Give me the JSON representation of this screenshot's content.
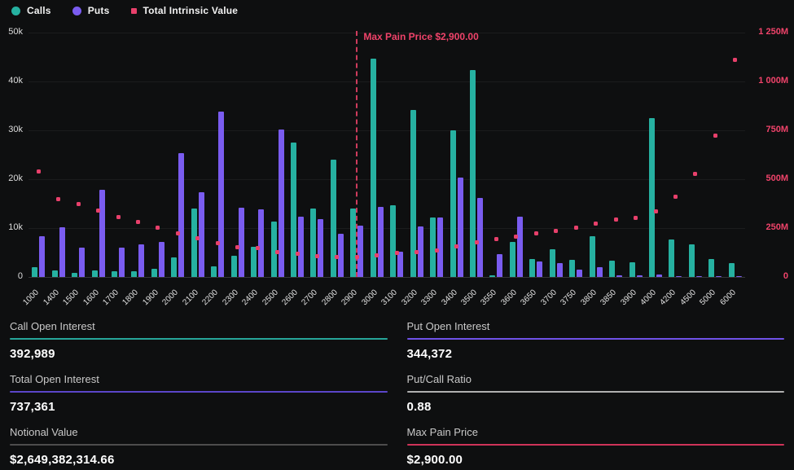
{
  "legend": [
    {
      "label": "Calls",
      "marker": "circle",
      "color": "#26b1a1"
    },
    {
      "label": "Puts",
      "marker": "circle",
      "color": "#7a5cf0"
    },
    {
      "label": "Total Intrinsic Value",
      "marker": "square",
      "color": "#e8406b"
    }
  ],
  "chart_data": {
    "type": "bar",
    "title": "",
    "categories": [
      "1000",
      "1400",
      "1500",
      "1600",
      "1700",
      "1800",
      "1900",
      "2000",
      "2100",
      "2200",
      "2300",
      "2400",
      "2500",
      "2600",
      "2700",
      "2800",
      "2900",
      "3000",
      "3100",
      "3200",
      "3300",
      "3400",
      "3500",
      "3550",
      "3600",
      "3650",
      "3700",
      "3750",
      "3800",
      "3850",
      "3900",
      "4000",
      "4200",
      "4500",
      "5000",
      "6000"
    ],
    "series": [
      {
        "name": "Calls",
        "type": "bar",
        "axis": "left",
        "color": "#26b1a1",
        "values": [
          2000,
          1300,
          800,
          1300,
          1200,
          1200,
          1700,
          4000,
          14000,
          2200,
          4300,
          6200,
          11300,
          27500,
          14000,
          24000,
          14000,
          44600,
          14700,
          34200,
          12100,
          30000,
          42300,
          300,
          7200,
          3600,
          5600,
          3500,
          8300,
          3300,
          3000,
          32500,
          7700,
          6700,
          3600,
          2800
        ]
      },
      {
        "name": "Puts",
        "type": "bar",
        "axis": "left",
        "color": "#7a5cf0",
        "values": [
          8400,
          10200,
          6000,
          17800,
          6000,
          6700,
          7200,
          25300,
          17300,
          33800,
          14200,
          13800,
          30200,
          12300,
          11800,
          8900,
          10500,
          14300,
          5100,
          10400,
          12100,
          20400,
          16200,
          4700,
          12300,
          3100,
          2900,
          1500,
          2000,
          400,
          400,
          500,
          200,
          200,
          100,
          100
        ]
      },
      {
        "name": "Total Intrinsic Value",
        "type": "scatter",
        "axis": "right",
        "color": "#e8406b",
        "values_millions": [
          540,
          400,
          372,
          340,
          308,
          280,
          253,
          222,
          196,
          175,
          154,
          148,
          126,
          117,
          108,
          104,
          103,
          111,
          124,
          126,
          137,
          158,
          179,
          192,
          208,
          221,
          237,
          254,
          275,
          292,
          304,
          337,
          412,
          529,
          721,
          1110
        ]
      }
    ],
    "left_axis": {
      "ticks": [
        "0",
        "10k",
        "20k",
        "30k",
        "40k",
        "50k"
      ],
      "min": 0,
      "max": 50000,
      "tick_color": "#dcdcdc"
    },
    "right_axis": {
      "ticks": [
        "0",
        "250M",
        "500M",
        "750M",
        "1 000M",
        "1 250M"
      ],
      "min": 0,
      "max_millions": 1250,
      "tick_color": "#f0436a"
    },
    "grid": true,
    "legend_position": "top-left",
    "annotation": {
      "label": "Max Pain Price $2,900.00",
      "category": "2900",
      "color": "#f0436a"
    }
  },
  "stats": {
    "cells": [
      {
        "label": "Call Open Interest",
        "value": "392,989",
        "line_color": "#26a69a"
      },
      {
        "label": "Put Open Interest",
        "value": "344,372",
        "line_color": "#6f52e8"
      },
      {
        "label": "Total Open Interest",
        "value": "737,361",
        "line_color": "#5b46c9"
      },
      {
        "label": "Put/Call Ratio",
        "value": "0.88",
        "line_color": "#b0b0b0"
      },
      {
        "label": "Notional Value",
        "value": "$2,649,382,314.66",
        "line_color": "#4d4d4d"
      },
      {
        "label": "Max Pain Price",
        "value": "$2,900.00",
        "line_color": "#cf3359"
      }
    ]
  }
}
